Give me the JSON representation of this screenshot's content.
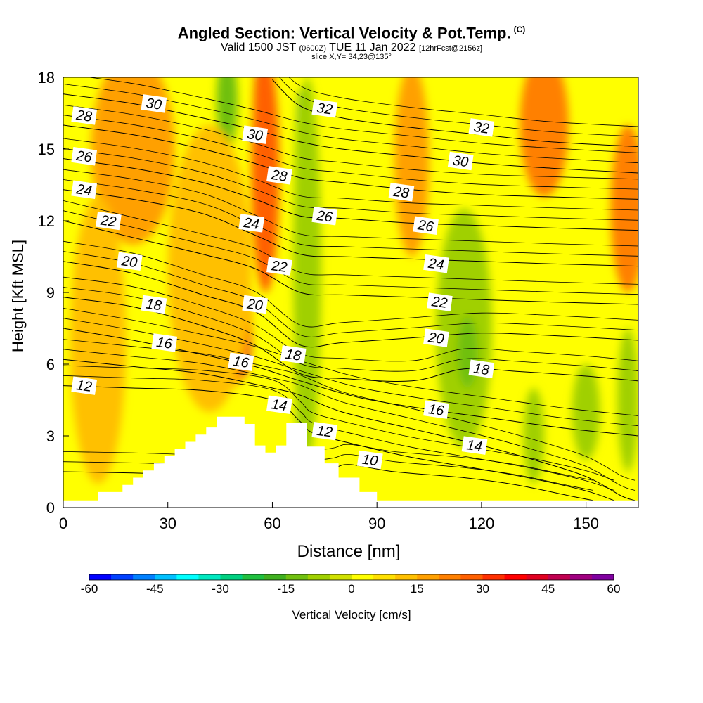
{
  "header": {
    "title": "Angled Section: Vertical Velocity & Pot.Temp.",
    "title_mark": "(C)",
    "valid_prefix": "Valid 1500 JST",
    "valid_z": "(0600Z)",
    "valid_date": "TUE 11 Jan 2022",
    "forecast": "[12hrFcst@2156z]",
    "slice": "slice X,Y= 34,23@135°"
  },
  "chart_data": {
    "type": "heatmap",
    "title": "Angled Section: Vertical Velocity & Pot.Temp.",
    "xlabel": "Distance [nm]",
    "ylabel": "Height [Kft MSL]",
    "xlim": [
      0,
      165
    ],
    "ylim": [
      0,
      18
    ],
    "x_ticks": [
      "0",
      "30",
      "60",
      "90",
      "120",
      "150"
    ],
    "y_ticks": [
      "0",
      "3",
      "6",
      "9",
      "12",
      "15",
      "18"
    ],
    "x_tick_values": [
      0,
      30,
      60,
      90,
      120,
      150
    ],
    "y_tick_values": [
      0,
      3,
      6,
      9,
      12,
      15,
      18
    ],
    "terrain": [
      [
        0,
        0.3
      ],
      [
        10,
        0.3
      ],
      [
        10,
        0.65
      ],
      [
        17,
        0.65
      ],
      [
        17,
        0.95
      ],
      [
        20,
        0.95
      ],
      [
        20,
        1.25
      ],
      [
        23,
        1.25
      ],
      [
        23,
        1.55
      ],
      [
        26,
        1.55
      ],
      [
        26,
        1.85
      ],
      [
        29,
        1.85
      ],
      [
        29,
        2.15
      ],
      [
        32,
        2.15
      ],
      [
        32,
        2.45
      ],
      [
        35,
        2.45
      ],
      [
        35,
        2.75
      ],
      [
        38,
        2.75
      ],
      [
        38,
        3.05
      ],
      [
        41,
        3.05
      ],
      [
        41,
        3.35
      ],
      [
        44,
        3.35
      ],
      [
        44,
        3.8
      ],
      [
        52,
        3.8
      ],
      [
        52,
        3.5
      ],
      [
        55,
        3.5
      ],
      [
        55,
        2.6
      ],
      [
        58,
        2.6
      ],
      [
        58,
        2.3
      ],
      [
        61,
        2.3
      ],
      [
        61,
        2.6
      ],
      [
        64,
        2.6
      ],
      [
        64,
        3.55
      ],
      [
        70,
        3.55
      ],
      [
        70,
        2.55
      ],
      [
        75,
        2.55
      ],
      [
        75,
        1.85
      ],
      [
        79,
        1.85
      ],
      [
        79,
        1.25
      ],
      [
        85,
        1.25
      ],
      [
        85,
        0.65
      ],
      [
        90,
        0.65
      ],
      [
        90,
        0.3
      ],
      [
        165,
        0.3
      ]
    ],
    "theta_contours": [
      {
        "value": 10,
        "label": "10",
        "pts": [
          [
            0,
            1.5
          ],
          [
            20,
            1.45
          ],
          [
            50,
            1.35
          ],
          [
            75,
            1.6
          ],
          [
            82,
            1.8
          ],
          [
            95,
            1.5
          ],
          [
            115,
            1.25
          ],
          [
            130,
            0.95
          ],
          [
            145,
            0.5
          ],
          [
            152,
            0.3
          ]
        ]
      },
      {
        "value": 12,
        "label": "12",
        "pts": [
          [
            0,
            5.1
          ],
          [
            20,
            5.0
          ],
          [
            40,
            4.9
          ],
          [
            60,
            4.5
          ],
          [
            68,
            3.6
          ],
          [
            72,
            3.1
          ],
          [
            85,
            2.6
          ],
          [
            100,
            2.1
          ],
          [
            120,
            1.6
          ],
          [
            135,
            1.2
          ],
          [
            150,
            0.7
          ],
          [
            158,
            0.3
          ]
        ]
      },
      {
        "value": 14,
        "label": "14",
        "pts": [
          [
            0,
            6.2
          ],
          [
            20,
            5.9
          ],
          [
            40,
            5.6
          ],
          [
            60,
            5.0
          ],
          [
            68,
            4.7
          ],
          [
            80,
            4.0
          ],
          [
            100,
            3.3
          ],
          [
            120,
            2.6
          ],
          [
            135,
            2.0
          ],
          [
            150,
            1.3
          ],
          [
            160,
            0.5
          ],
          [
            164,
            0.3
          ]
        ]
      },
      {
        "value": 16,
        "label": "16",
        "pts": [
          [
            0,
            7.5
          ],
          [
            20,
            7.0
          ],
          [
            40,
            6.4
          ],
          [
            55,
            5.9
          ],
          [
            68,
            5.3
          ],
          [
            85,
            4.6
          ],
          [
            105,
            4.1
          ],
          [
            125,
            3.7
          ],
          [
            145,
            3.3
          ],
          [
            165,
            3.0
          ]
        ]
      },
      {
        "value": 18,
        "label": "18",
        "pts": [
          [
            0,
            8.8
          ],
          [
            20,
            8.4
          ],
          [
            40,
            7.6
          ],
          [
            55,
            6.8
          ],
          [
            68,
            5.6
          ],
          [
            80,
            5.4
          ],
          [
            100,
            5.3
          ],
          [
            115,
            5.8
          ],
          [
            130,
            5.7
          ],
          [
            150,
            5.5
          ],
          [
            165,
            5.3
          ]
        ]
      },
      {
        "value": 20,
        "label": "20",
        "pts": [
          [
            0,
            10.3
          ],
          [
            20,
            9.8
          ],
          [
            40,
            8.9
          ],
          [
            55,
            8.2
          ],
          [
            68,
            6.8
          ],
          [
            80,
            6.9
          ],
          [
            100,
            7.1
          ],
          [
            120,
            7.3
          ],
          [
            140,
            7.2
          ],
          [
            165,
            7.0
          ]
        ]
      },
      {
        "value": 22,
        "label": "22",
        "pts": [
          [
            0,
            12.0
          ],
          [
            20,
            11.3
          ],
          [
            40,
            10.6
          ],
          [
            55,
            10.0
          ],
          [
            68,
            9.0
          ],
          [
            80,
            8.9
          ],
          [
            100,
            8.8
          ],
          [
            120,
            8.7
          ],
          [
            140,
            8.6
          ],
          [
            165,
            8.5
          ]
        ]
      },
      {
        "value": 24,
        "label": "24",
        "pts": [
          [
            0,
            13.3
          ],
          [
            20,
            12.9
          ],
          [
            40,
            12.3
          ],
          [
            55,
            11.4
          ],
          [
            68,
            10.6
          ],
          [
            80,
            10.5
          ],
          [
            100,
            10.4
          ],
          [
            120,
            10.3
          ],
          [
            140,
            10.2
          ],
          [
            165,
            10.1
          ]
        ]
      },
      {
        "value": 26,
        "label": "26",
        "pts": [
          [
            0,
            14.6
          ],
          [
            20,
            14.2
          ],
          [
            40,
            13.6
          ],
          [
            55,
            12.9
          ],
          [
            68,
            12.2
          ],
          [
            80,
            12.1
          ],
          [
            100,
            11.9
          ],
          [
            120,
            11.8
          ],
          [
            140,
            11.7
          ],
          [
            165,
            11.6
          ]
        ]
      },
      {
        "value": 28,
        "label": "28",
        "pts": [
          [
            0,
            16.0
          ],
          [
            20,
            15.6
          ],
          [
            40,
            15.0
          ],
          [
            55,
            14.4
          ],
          [
            68,
            13.8
          ],
          [
            80,
            13.6
          ],
          [
            100,
            13.3
          ],
          [
            120,
            13.1
          ],
          [
            140,
            13.0
          ],
          [
            165,
            12.9
          ]
        ]
      },
      {
        "value": 30,
        "label": "30",
        "pts": [
          [
            0,
            17.3
          ],
          [
            20,
            16.9
          ],
          [
            40,
            16.3
          ],
          [
            55,
            15.8
          ],
          [
            68,
            15.3
          ],
          [
            80,
            15.0
          ],
          [
            100,
            14.7
          ],
          [
            120,
            14.4
          ],
          [
            140,
            14.2
          ],
          [
            165,
            14.0
          ]
        ]
      },
      {
        "value": 32,
        "label": "32",
        "pts": [
          [
            60,
            17.9
          ],
          [
            68,
            16.8
          ],
          [
            80,
            16.3
          ],
          [
            100,
            15.9
          ],
          [
            120,
            15.6
          ],
          [
            140,
            15.3
          ],
          [
            165,
            15.1
          ]
        ]
      }
    ],
    "contour_labels": [
      {
        "text": "30",
        "x": 26,
        "y": 16.9
      },
      {
        "text": "28",
        "x": 6,
        "y": 16.4
      },
      {
        "text": "26",
        "x": 6,
        "y": 14.7
      },
      {
        "text": "24",
        "x": 6,
        "y": 13.3
      },
      {
        "text": "22",
        "x": 13,
        "y": 12.0
      },
      {
        "text": "20",
        "x": 19,
        "y": 10.3
      },
      {
        "text": "18",
        "x": 26,
        "y": 8.5
      },
      {
        "text": "16",
        "x": 29,
        "y": 6.9
      },
      {
        "text": "12",
        "x": 6,
        "y": 5.1
      },
      {
        "text": "30",
        "x": 55,
        "y": 15.6
      },
      {
        "text": "28",
        "x": 62,
        "y": 13.9
      },
      {
        "text": "24",
        "x": 54,
        "y": 11.9
      },
      {
        "text": "22",
        "x": 62,
        "y": 10.1
      },
      {
        "text": "20",
        "x": 55,
        "y": 8.5
      },
      {
        "text": "16",
        "x": 51,
        "y": 6.1
      },
      {
        "text": "18",
        "x": 66,
        "y": 6.4
      },
      {
        "text": "14",
        "x": 62,
        "y": 4.3
      },
      {
        "text": "32",
        "x": 75,
        "y": 16.7
      },
      {
        "text": "26",
        "x": 75,
        "y": 12.2
      },
      {
        "text": "12",
        "x": 75,
        "y": 3.2
      },
      {
        "text": "10",
        "x": 88,
        "y": 2.0
      },
      {
        "text": "32",
        "x": 120,
        "y": 15.9
      },
      {
        "text": "30",
        "x": 114,
        "y": 14.5
      },
      {
        "text": "28",
        "x": 97,
        "y": 13.2
      },
      {
        "text": "26",
        "x": 104,
        "y": 11.8
      },
      {
        "text": "24",
        "x": 107,
        "y": 10.2
      },
      {
        "text": "22",
        "x": 108,
        "y": 8.6
      },
      {
        "text": "20",
        "x": 107,
        "y": 7.1
      },
      {
        "text": "18",
        "x": 120,
        "y": 5.8
      },
      {
        "text": "16",
        "x": 107,
        "y": 4.1
      },
      {
        "text": "14",
        "x": 118,
        "y": 2.6
      }
    ],
    "velocity_features": [
      {
        "v": -20,
        "cx": 68,
        "cy": 10,
        "rx": 1.8,
        "ry": 7.5
      },
      {
        "v": -10,
        "cx": 70,
        "cy": 10,
        "rx": 4,
        "ry": 8
      },
      {
        "v": 40,
        "cx": 57,
        "cy": 16,
        "rx": 2.5,
        "ry": 3
      },
      {
        "v": 25,
        "cx": 58,
        "cy": 14,
        "rx": 4,
        "ry": 5
      },
      {
        "v": -15,
        "cx": 47,
        "cy": 17,
        "rx": 3,
        "ry": 2
      },
      {
        "v": 40,
        "cx": 51,
        "cy": 7.2,
        "rx": 3,
        "ry": 1.8
      },
      {
        "v": 25,
        "cx": 48,
        "cy": 8.5,
        "rx": 6,
        "ry": 3.5
      },
      {
        "v": 12,
        "cx": 42,
        "cy": 10,
        "rx": 12,
        "ry": 6
      },
      {
        "v": 15,
        "cx": 20,
        "cy": 15,
        "rx": 12,
        "ry": 4
      },
      {
        "v": 12,
        "cx": 10,
        "cy": 7,
        "rx": 8,
        "ry": 6
      },
      {
        "v": -8,
        "cx": 115,
        "cy": 7.5,
        "rx": 8,
        "ry": 5
      },
      {
        "v": -12,
        "cx": 116,
        "cy": 6.5,
        "rx": 3,
        "ry": 1.5
      },
      {
        "v": 18,
        "cx": 100,
        "cy": 14.5,
        "rx": 5,
        "ry": 4
      },
      {
        "v": 20,
        "cx": 138,
        "cy": 16,
        "rx": 7,
        "ry": 3
      },
      {
        "v": 20,
        "cx": 162,
        "cy": 12.5,
        "rx": 5,
        "ry": 3.5
      },
      {
        "v": -8,
        "cx": 150,
        "cy": 4,
        "rx": 4,
        "ry": 2
      },
      {
        "v": -6,
        "cx": 135,
        "cy": 3,
        "rx": 3,
        "ry": 2
      },
      {
        "v": -8,
        "cx": 162,
        "cy": 4.5,
        "rx": 3,
        "ry": 3
      }
    ],
    "colorbar": {
      "label": "Vertical Velocity [cm/s]",
      "ticks": [
        "-60",
        "-45",
        "-30",
        "-15",
        "0",
        "15",
        "30",
        "45",
        "60"
      ],
      "tick_values": [
        -60,
        -45,
        -30,
        -15,
        0,
        15,
        30,
        45,
        60
      ],
      "colors": [
        "#0000ff",
        "#0040ff",
        "#0080ff",
        "#00c0ff",
        "#00ffff",
        "#00e8c0",
        "#00d080",
        "#20c040",
        "#40b020",
        "#70c010",
        "#a0d000",
        "#d0e000",
        "#ffff00",
        "#ffe000",
        "#ffc000",
        "#ffa000",
        "#ff8000",
        "#ff6000",
        "#ff3000",
        "#ff0000",
        "#e00020",
        "#c00050",
        "#a00080",
        "#8000a0"
      ]
    }
  }
}
